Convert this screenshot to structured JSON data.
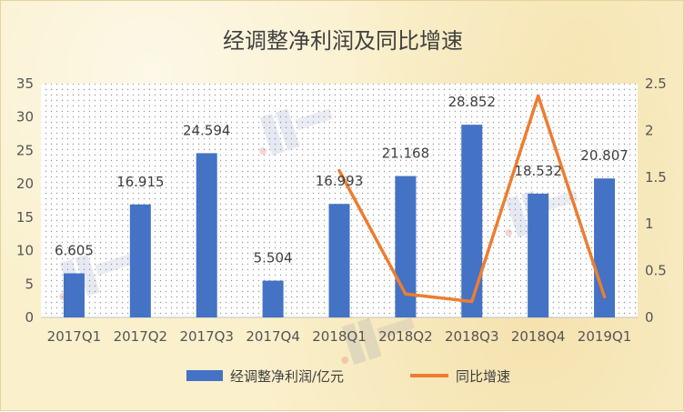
{
  "chart_data": {
    "type": "bar",
    "title": "经调整净利润及同比增速",
    "categories": [
      "2017Q1",
      "2017Q2",
      "2017Q3",
      "2017Q4",
      "2018Q1",
      "2018Q2",
      "2018Q3",
      "2018Q4",
      "2019Q1"
    ],
    "series": [
      {
        "name": "经调整净利润/亿元",
        "type": "bar",
        "axis": "left",
        "color": "#4472c4",
        "values": [
          6.605,
          16.915,
          24.594,
          5.504,
          16.993,
          21.168,
          28.852,
          18.532,
          20.807
        ],
        "labels": [
          "6.605",
          "16.915",
          "24.594",
          "5.504",
          "16.993",
          "21.168",
          "28.852",
          "18.532",
          "20.807"
        ]
      },
      {
        "name": "同比增速",
        "type": "line",
        "axis": "right",
        "color": "#ed7d31",
        "values": [
          null,
          null,
          null,
          null,
          1.57,
          0.25,
          0.17,
          2.37,
          0.22
        ]
      }
    ],
    "y_left": {
      "ylim": [
        0,
        35
      ],
      "ticks": [
        "0",
        "5",
        "10",
        "15",
        "20",
        "25",
        "30",
        "35"
      ]
    },
    "y_right": {
      "ylim": [
        0,
        2.5
      ],
      "ticks": [
        "0",
        "0.5",
        "1",
        "1.5",
        "2",
        "2.5"
      ]
    },
    "legend": "bottom",
    "grid": false,
    "plot_background": "dotted"
  }
}
